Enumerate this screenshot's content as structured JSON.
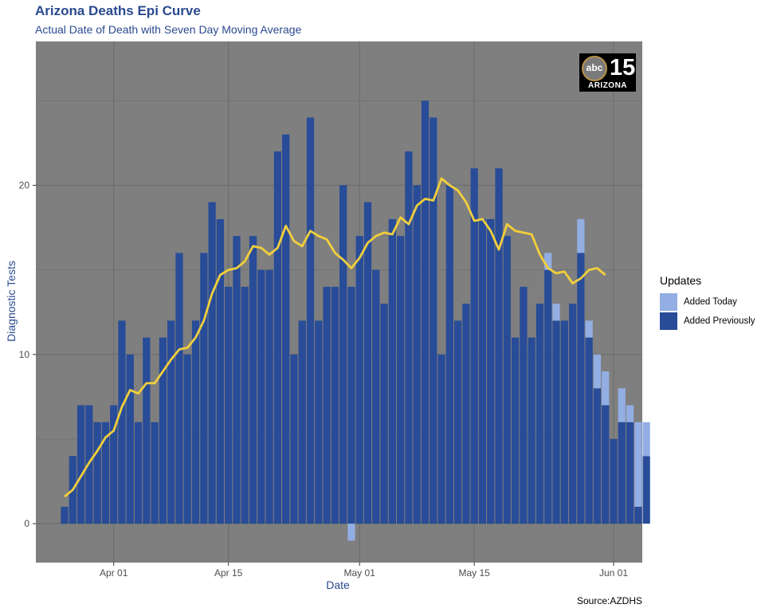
{
  "header": {
    "title": "Arizona Deaths Epi Curve",
    "subtitle": "Actual Date of Death with Seven Day Moving Average"
  },
  "logo": {
    "circle_text": "abc",
    "number": "15",
    "state": "ARIZONA"
  },
  "source": "Source:AZDHS",
  "colors": {
    "panel": "#7f7f7f",
    "grid": "#6e6e6e",
    "added_previously": "#284c98",
    "added_today": "#93aee3",
    "moving_average": "#f1cf3c",
    "title": "#2b4a8f"
  },
  "chart_data": {
    "type": "bar",
    "stacked": true,
    "xlabel": "Date",
    "ylabel": "Diagnostic Tests",
    "x_range": [
      "2020-03-23",
      "2020-06-04"
    ],
    "ylim": [
      -2.3,
      28.5
    ],
    "y_ticks": [
      0,
      10,
      20
    ],
    "x_ticks": [
      {
        "date": "2020-04-01",
        "label": "Apr 01"
      },
      {
        "date": "2020-04-15",
        "label": "Apr 15"
      },
      {
        "date": "2020-05-01",
        "label": "May 01"
      },
      {
        "date": "2020-05-15",
        "label": "May 15"
      },
      {
        "date": "2020-06-01",
        "label": "Jun 01"
      }
    ],
    "grid": true,
    "legend": {
      "title": "Updates",
      "position": "right",
      "entries": [
        "Added Today",
        "Added Previously"
      ]
    },
    "start_date": "2020-03-26",
    "series": [
      {
        "name": "Added Previously",
        "values": [
          1,
          4,
          7,
          7,
          6,
          6,
          7,
          12,
          10,
          6,
          11,
          6,
          11,
          12,
          16,
          10,
          12,
          16,
          19,
          18,
          14,
          17,
          14,
          17,
          15,
          15,
          22,
          23,
          10,
          12,
          24,
          12,
          14,
          14,
          20,
          14,
          17,
          19,
          15,
          13,
          18,
          17,
          22,
          20,
          25,
          24,
          10,
          20,
          12,
          13,
          21,
          18,
          18,
          21,
          17,
          11,
          14,
          11,
          13,
          15,
          12,
          12,
          13,
          16,
          11,
          8,
          7,
          5,
          6,
          6,
          1,
          4,
          0
        ]
      },
      {
        "name": "Added Today",
        "values": [
          0,
          0,
          0,
          0,
          0,
          0,
          0,
          0,
          0,
          0,
          0,
          0,
          0,
          0,
          0,
          0,
          0,
          0,
          0,
          0,
          0,
          0,
          0,
          0,
          0,
          0,
          0,
          0,
          0,
          0,
          0,
          0,
          0,
          0,
          0,
          0,
          0,
          0,
          0,
          0,
          0,
          0,
          0,
          0,
          0,
          0,
          0,
          0,
          0,
          0,
          0,
          0,
          0,
          0,
          0,
          0,
          0,
          0,
          0,
          0,
          0,
          0,
          0,
          1,
          0,
          0,
          0,
          0,
          0,
          0,
          0,
          0,
          0
        ]
      }
    ],
    "added_today_overrides": [
      {
        "date": "2020-04-30",
        "value": -1
      },
      {
        "date": "2020-05-24",
        "value": 1
      },
      {
        "date": "2020-05-25",
        "value": 1
      },
      {
        "date": "2020-05-28",
        "value": 2
      },
      {
        "date": "2020-05-29",
        "value": 1
      },
      {
        "date": "2020-05-30",
        "value": 2
      },
      {
        "date": "2020-05-31",
        "value": 2
      },
      {
        "date": "2020-06-02",
        "value": 2
      },
      {
        "date": "2020-06-03",
        "value": 1
      },
      {
        "date": "2020-06-04",
        "value": 5
      },
      {
        "date": "2020-06-05",
        "value": 2
      }
    ],
    "moving_average": {
      "name": "Seven Day Moving Average",
      "start_date": "2020-03-26",
      "values": [
        1.6,
        2.0,
        2.8,
        3.6,
        4.3,
        5.1,
        5.5,
        6.9,
        7.9,
        7.7,
        8.3,
        8.3,
        9.0,
        9.7,
        10.3,
        10.4,
        11.0,
        12.0,
        13.6,
        14.7,
        15.0,
        15.1,
        15.5,
        16.4,
        16.3,
        15.9,
        16.3,
        17.6,
        16.7,
        16.4,
        17.3,
        17.0,
        16.8,
        16.0,
        15.6,
        15.1,
        15.7,
        16.6,
        17.0,
        17.2,
        17.1,
        18.1,
        17.7,
        18.8,
        19.2,
        19.1,
        20.4,
        20.0,
        19.7,
        19.0,
        17.9,
        18.0,
        17.3,
        16.2,
        17.7,
        17.3,
        17.2,
        17.1,
        15.9,
        15.1,
        14.8,
        14.9,
        14.2,
        14.5,
        15.0,
        15.1,
        14.7
      ]
    }
  }
}
